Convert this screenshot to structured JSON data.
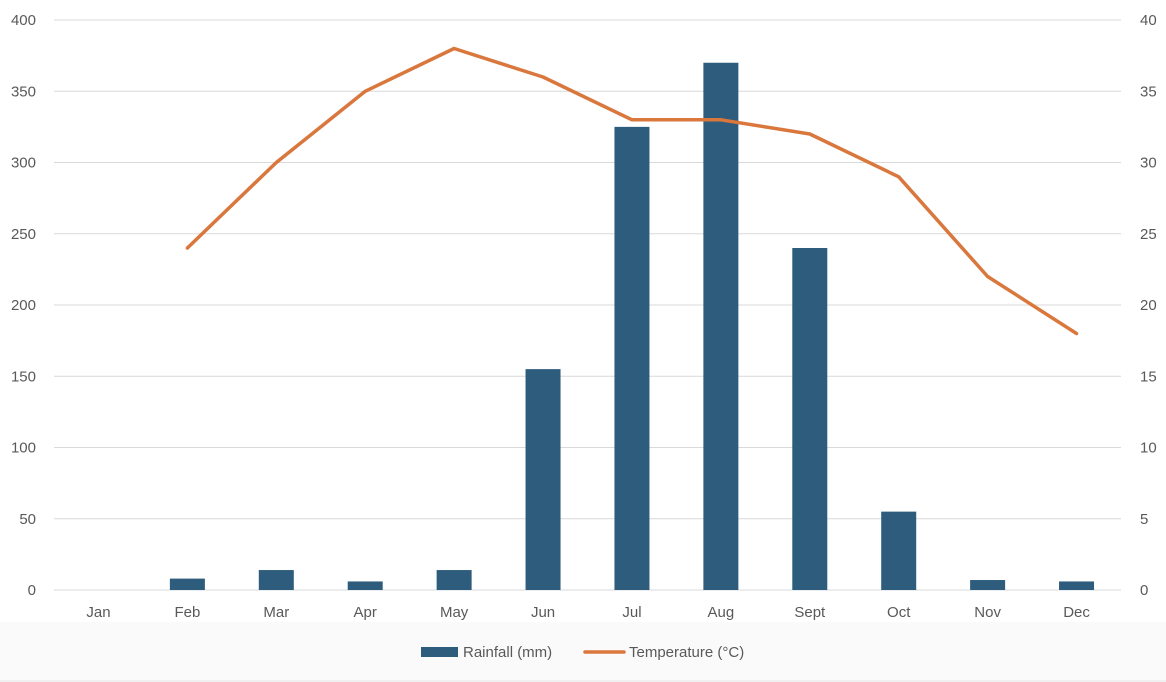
{
  "chart_data": {
    "type": "bar",
    "categories": [
      "Jan",
      "Feb",
      "Mar",
      "Apr",
      "May",
      "Jun",
      "Jul",
      "Aug",
      "Sept",
      "Oct",
      "Nov",
      "Dec"
    ],
    "series": [
      {
        "name": "Rainfall (mm)",
        "type": "bar",
        "axis": "left",
        "color": "#2e5c7c",
        "values": [
          0,
          8,
          14,
          6,
          14,
          155,
          325,
          370,
          240,
          55,
          7,
          6
        ]
      },
      {
        "name": "Temperature (°C)",
        "type": "line",
        "axis": "right",
        "color": "#d9773d",
        "values": [
          null,
          24,
          30,
          35,
          38,
          36,
          33,
          33,
          32,
          29,
          22,
          18
        ]
      }
    ],
    "y_left": {
      "min": 0,
      "max": 400,
      "ticks": [
        0,
        50,
        100,
        150,
        200,
        250,
        300,
        350,
        400
      ]
    },
    "y_right": {
      "min": 0,
      "max": 40,
      "ticks": [
        0,
        5,
        10,
        15,
        20,
        25,
        30,
        35,
        40
      ]
    },
    "title": "",
    "xlabel": "",
    "ylabel": "",
    "y2label": "",
    "grid": true,
    "legend": "bottom-center"
  }
}
